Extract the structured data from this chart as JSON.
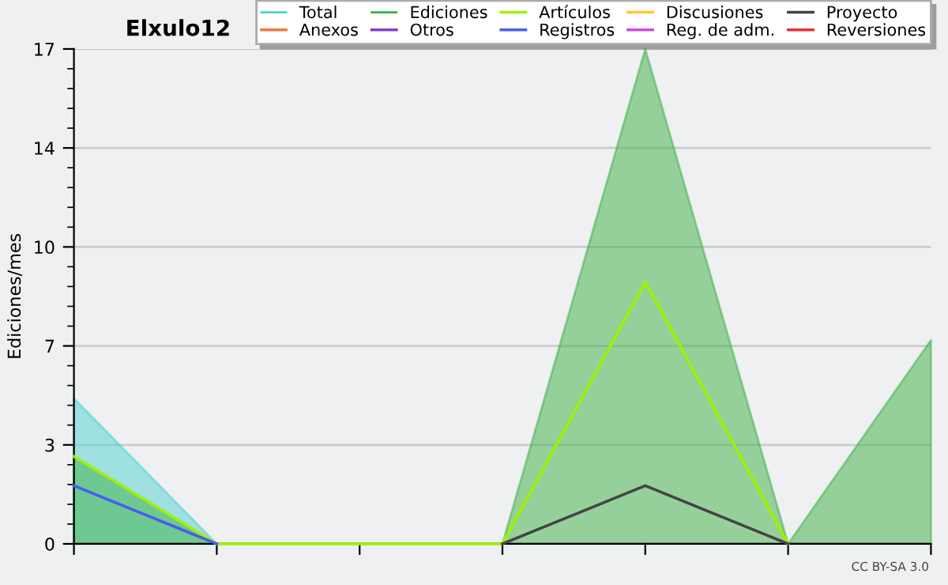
{
  "chart_data": {
    "type": "line",
    "title": "Elxulo12",
    "ylabel": "Ediciones/mes",
    "categories": [
      null,
      null,
      null,
      null,
      null,
      null,
      null
    ],
    "series": [
      {
        "name": "Total",
        "type": "area",
        "color": "#4fd0d0",
        "values": [
          5,
          0,
          null,
          null,
          null,
          null,
          null
        ]
      },
      {
        "name": "Anexos",
        "color": "#f07840",
        "values": [
          null,
          null,
          null,
          null,
          null,
          null,
          null
        ]
      },
      {
        "name": "Ediciones",
        "type": "area",
        "color": "#3cb043",
        "values": [
          3,
          0,
          0,
          0,
          17,
          0,
          7
        ]
      },
      {
        "name": "Otros",
        "color": "#8a3cd0",
        "values": [
          null,
          null,
          null,
          null,
          null,
          null,
          null
        ]
      },
      {
        "name": "Artículos",
        "color": "#a0f000",
        "values": [
          3,
          0,
          0,
          0,
          9,
          0,
          null
        ]
      },
      {
        "name": "Registros",
        "color": "#4a5cf0",
        "values": [
          2,
          0,
          null,
          null,
          null,
          null,
          null
        ]
      },
      {
        "name": "Discusiones",
        "color": "#ffc830",
        "values": [
          null,
          null,
          null,
          null,
          null,
          null,
          null
        ]
      },
      {
        "name": "Reg. de adm.",
        "color": "#d048e0",
        "values": [
          null,
          null,
          null,
          null,
          null,
          null,
          null
        ]
      },
      {
        "name": "Proyecto",
        "color": "#444444",
        "values": [
          null,
          null,
          null,
          0,
          2,
          0,
          null
        ]
      },
      {
        "name": "Reversiones",
        "color": "#e83030",
        "values": [
          null,
          null,
          null,
          null,
          null,
          null,
          null
        ]
      }
    ],
    "ylim": [
      0,
      17
    ],
    "yticks": [
      0,
      {
        "value": 3.4,
        "label": "3"
      },
      {
        "value": 6.8,
        "label": "7"
      },
      {
        "value": 10.2,
        "label": "10"
      },
      {
        "value": 13.6,
        "label": "14"
      },
      17
    ],
    "grid": "y",
    "legend": "top right",
    "annotations": [
      "CC BY-SA 3.0"
    ]
  }
}
